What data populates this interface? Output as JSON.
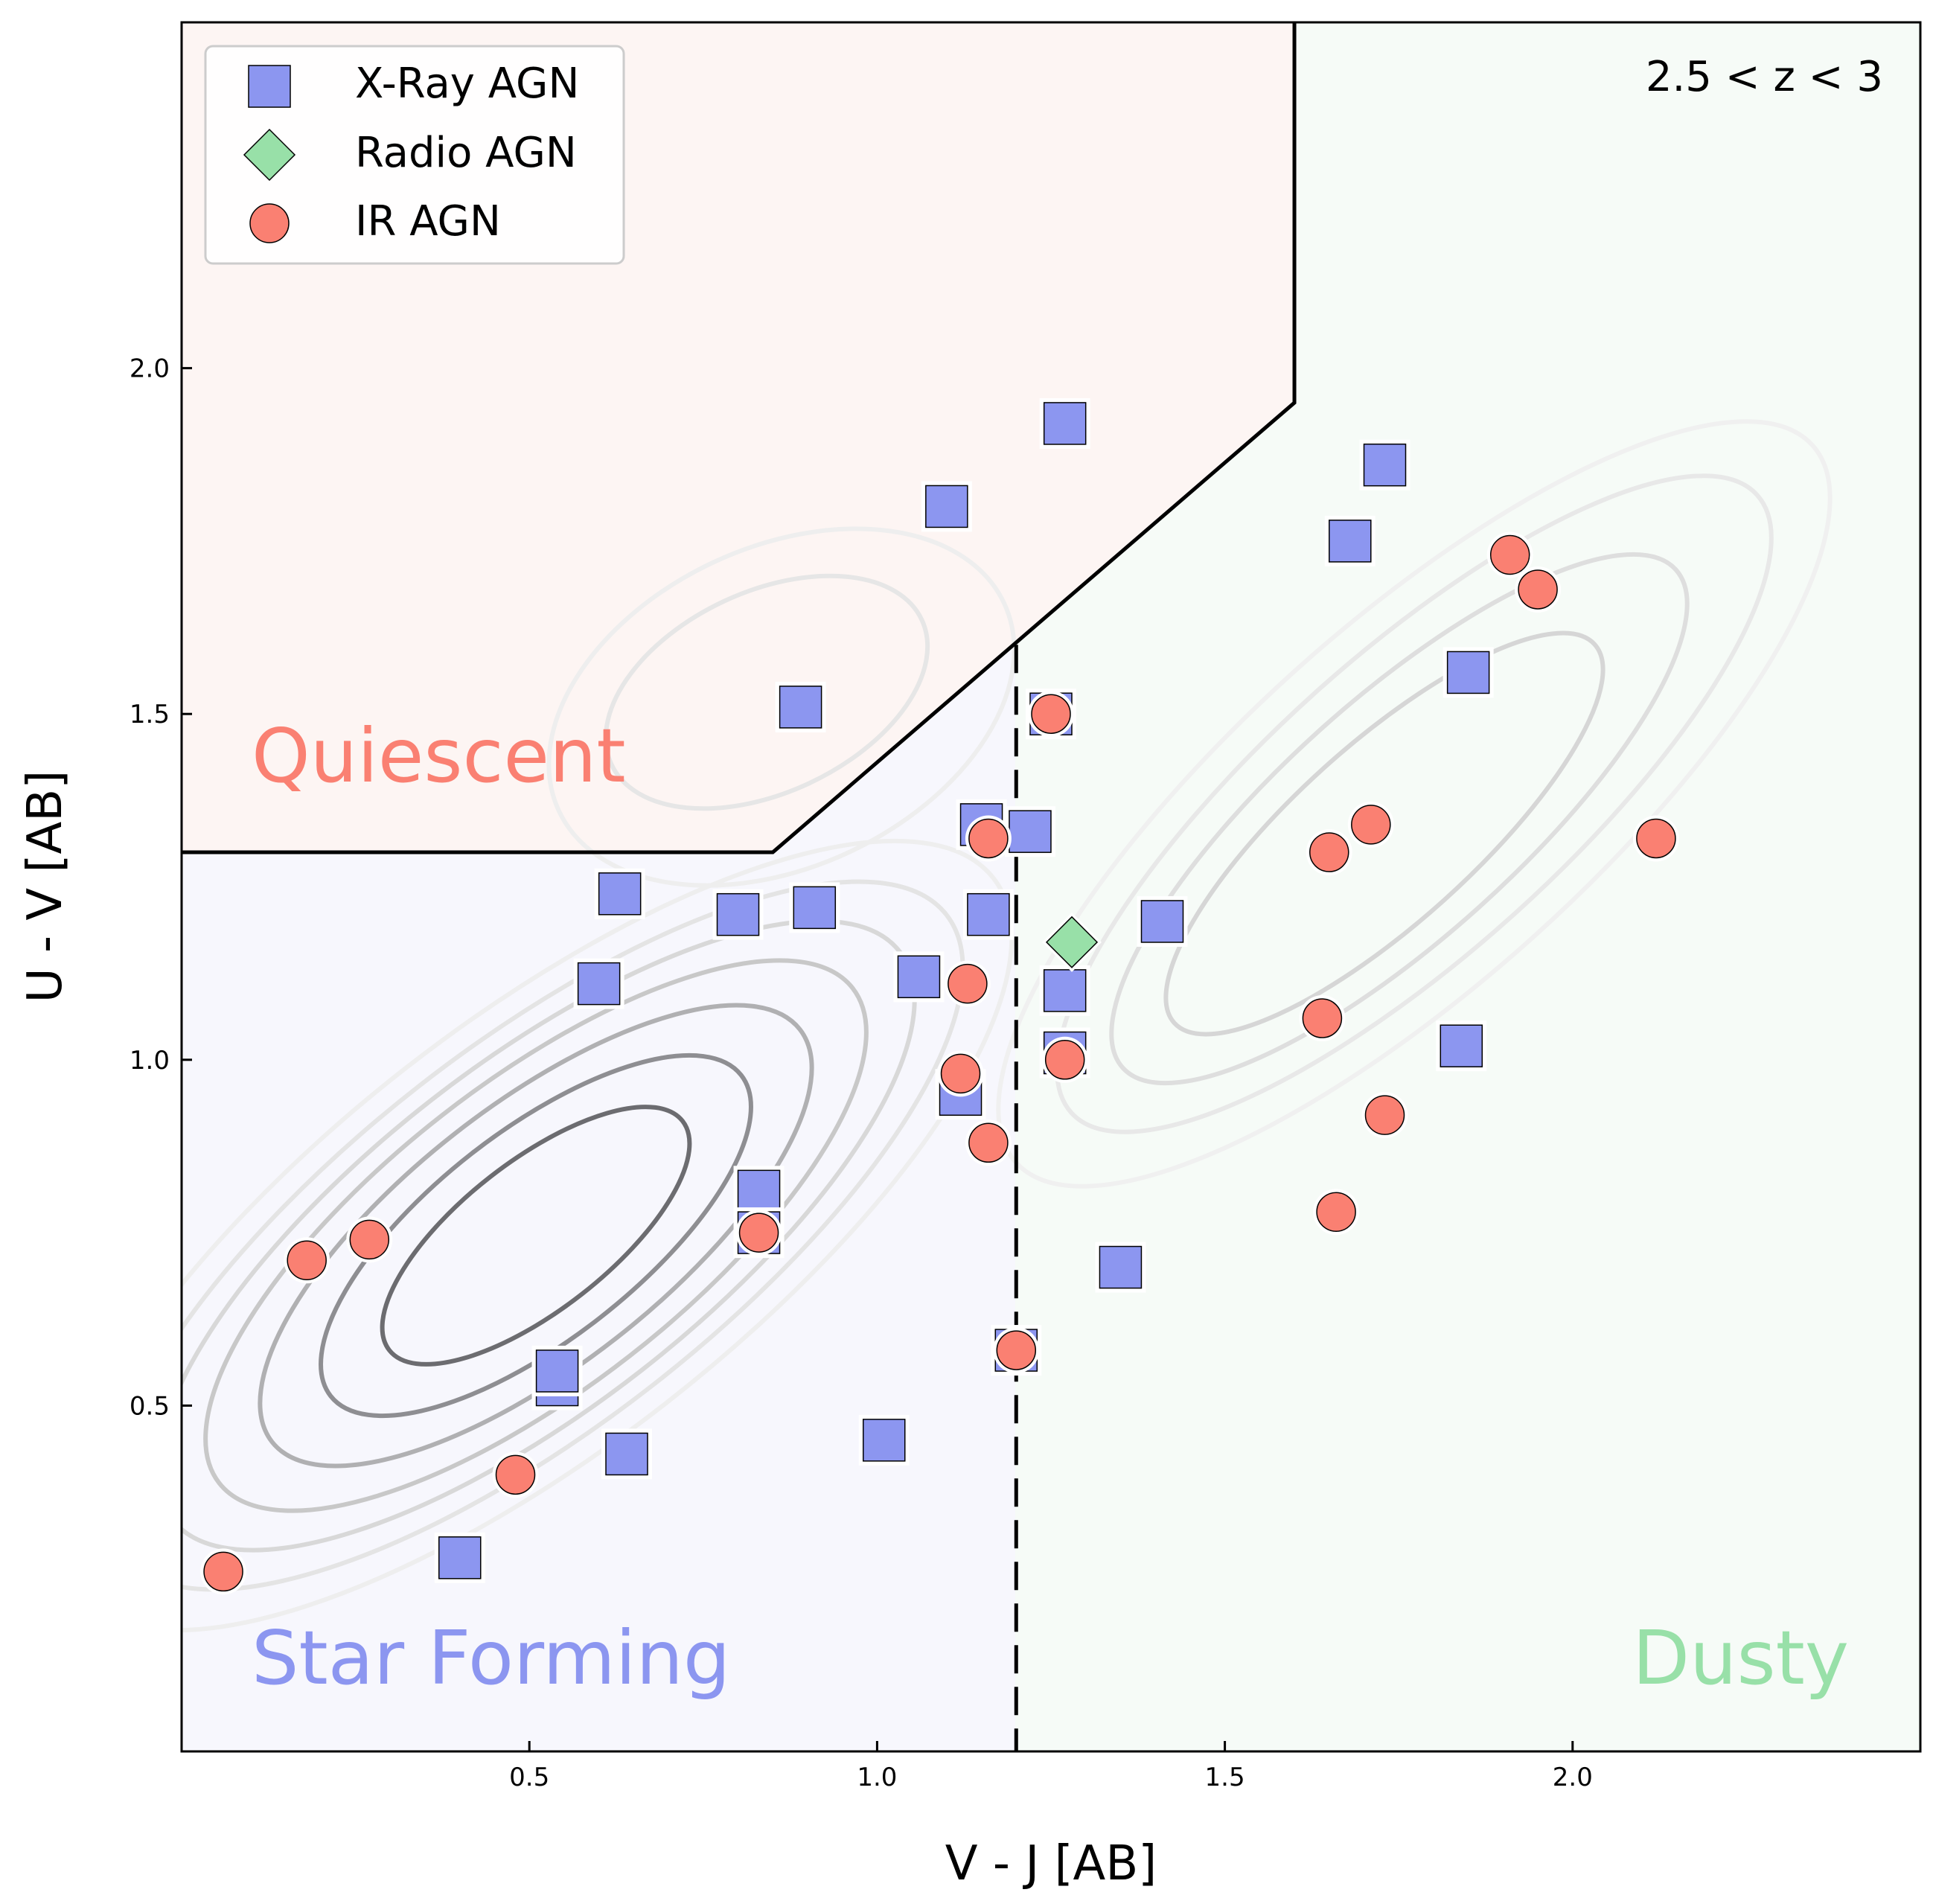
{
  "chart_data": {
    "type": "scatter",
    "xlabel": "V - J [AB]",
    "ylabel": "U - V [AB]",
    "xlim": [
      0.0,
      2.5
    ],
    "ylim": [
      0.0,
      2.5
    ],
    "xticks": [
      0.5,
      1.0,
      1.5,
      2.0
    ],
    "yticks": [
      0.5,
      1.0,
      1.5,
      2.0
    ],
    "xtick_labels": [
      "0.5",
      "1.0",
      "1.5",
      "2.0"
    ],
    "ytick_labels": [
      "0.5",
      "1.0",
      "1.5",
      "2.0"
    ],
    "grid": false,
    "legend_position": "top-left",
    "annotation": "2.5 < z < 3",
    "regions": [
      {
        "name": "Quiescent",
        "label": "Quiescent",
        "color": "#fa8072",
        "fill": "#fdf5f3"
      },
      {
        "name": "Star Forming",
        "label": "Star Forming",
        "color": "#8c96f0",
        "fill": "#f7f7fd"
      },
      {
        "name": "Dusty",
        "label": "Dusty",
        "color": "#98e0a8",
        "fill": "#f6fbf7"
      }
    ],
    "quiescent_boundary": [
      [
        0.0,
        1.3
      ],
      [
        0.85,
        1.3
      ],
      [
        1.6,
        1.95
      ],
      [
        1.6,
        2.5
      ]
    ],
    "dusty_boundary": {
      "x": 1.2,
      "y_range": [
        0.0,
        1.6
      ]
    },
    "series": [
      {
        "name": "X-Ray AGN",
        "marker": "square",
        "color": "#8c96f0",
        "points": [
          [
            1.27,
            1.92
          ],
          [
            1.1,
            1.8
          ],
          [
            1.73,
            1.86
          ],
          [
            1.68,
            1.75
          ],
          [
            0.89,
            1.51
          ],
          [
            1.25,
            1.5
          ],
          [
            1.85,
            1.56
          ],
          [
            1.15,
            1.34
          ],
          [
            1.22,
            1.33
          ],
          [
            0.63,
            1.24
          ],
          [
            0.8,
            1.21
          ],
          [
            0.91,
            1.22
          ],
          [
            1.16,
            1.21
          ],
          [
            1.41,
            1.2
          ],
          [
            0.6,
            1.11
          ],
          [
            1.06,
            1.12
          ],
          [
            1.27,
            1.1
          ],
          [
            1.27,
            1.01
          ],
          [
            1.84,
            1.02
          ],
          [
            1.12,
            0.95
          ],
          [
            0.83,
            0.81
          ],
          [
            0.83,
            0.75
          ],
          [
            1.35,
            0.7
          ],
          [
            1.2,
            0.58
          ],
          [
            0.54,
            0.53
          ],
          [
            0.54,
            0.55
          ],
          [
            0.64,
            0.43
          ],
          [
            1.01,
            0.45
          ],
          [
            0.4,
            0.28
          ]
        ]
      },
      {
        "name": "Radio AGN",
        "marker": "diamond",
        "color": "#98e0a8",
        "points": [
          [
            1.28,
            1.17
          ]
        ]
      },
      {
        "name": "IR AGN",
        "marker": "circle",
        "color": "#fa8072",
        "points": [
          [
            1.91,
            1.73
          ],
          [
            1.95,
            1.68
          ],
          [
            1.25,
            1.5
          ],
          [
            1.16,
            1.32
          ],
          [
            1.71,
            1.34
          ],
          [
            1.65,
            1.3
          ],
          [
            2.12,
            1.32
          ],
          [
            1.13,
            1.11
          ],
          [
            1.64,
            1.06
          ],
          [
            1.12,
            0.98
          ],
          [
            1.27,
            1.0
          ],
          [
            1.16,
            0.88
          ],
          [
            1.73,
            0.92
          ],
          [
            1.66,
            0.78
          ],
          [
            0.27,
            0.74
          ],
          [
            0.18,
            0.71
          ],
          [
            0.83,
            0.75
          ],
          [
            1.2,
            0.58
          ],
          [
            0.48,
            0.4
          ],
          [
            0.06,
            0.26
          ]
        ]
      }
    ]
  }
}
